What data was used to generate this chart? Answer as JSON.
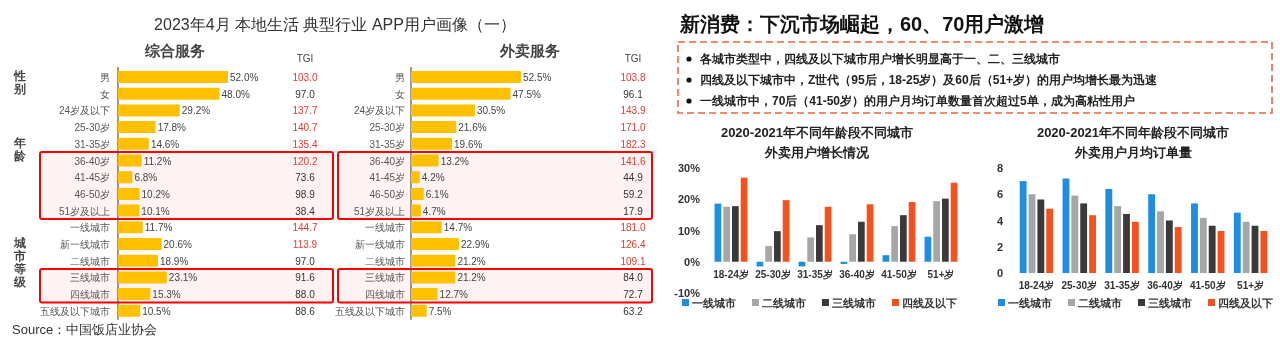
{
  "chart_data": [
    {
      "type": "bar",
      "orientation": "horizontal",
      "title": "2023年4月 本地生活 典型行业 APP用户画像（一）",
      "subtitle": "综合服务",
      "categories": [
        "男",
        "女",
        "24岁及以下",
        "25-30岁",
        "31-35岁",
        "36-40岁",
        "41-45岁",
        "46-50岁",
        "51岁及以上",
        "一线城市",
        "新一线城市",
        "二线城市",
        "三线城市",
        "四线城市",
        "五线及以下城市"
      ],
      "series": [
        {
          "color": "#ffc000",
          "values": [
            52.0,
            48.0,
            29.2,
            17.8,
            14.6,
            11.2,
            6.8,
            10.2,
            10.1,
            11.7,
            20.6,
            18.9,
            23.1,
            15.3,
            10.5
          ],
          "value_labels": [
            "52.0%",
            "48.0%",
            "29.2%",
            "17.8%",
            "14.6%",
            "11.2%",
            "6.8%",
            "10.2%",
            "10.1%",
            "11.7%",
            "20.6%",
            "18.9%",
            "23.1%",
            "15.3%",
            "10.5%"
          ]
        }
      ],
      "bands": [
        {
          "axis": "y",
          "from": "36-40岁",
          "to": "51岁及以上",
          "color": "#ff0000"
        },
        {
          "axis": "y",
          "from": "三线城市",
          "to": "四线城市",
          "color": "#ff0000"
        }
      ],
      "annotations": [
        "性别",
        "年龄",
        "城市等级",
        "TGI",
        "103.0",
        "97.0",
        "137.7",
        "140.7",
        "135.4",
        "120.2",
        "73.6",
        "98.9",
        "38.4",
        "144.7",
        "113.9",
        "97.0",
        "91.6",
        "88.0",
        "88.6"
      ]
    },
    {
      "type": "bar",
      "orientation": "horizontal",
      "subtitle": "外卖服务",
      "categories": [
        "男",
        "女",
        "24岁及以下",
        "25-30岁",
        "31-35岁",
        "36-40岁",
        "41-45岁",
        "46-50岁",
        "51岁及以上",
        "一线城市",
        "新一线城市",
        "二线城市",
        "三线城市",
        "四线城市",
        "五线及以下城市"
      ],
      "series": [
        {
          "color": "#ffc000",
          "values": [
            52.5,
            47.5,
            30.5,
            21.6,
            19.6,
            13.2,
            4.2,
            6.1,
            4.7,
            14.7,
            22.9,
            21.2,
            21.2,
            12.7,
            7.5
          ],
          "value_labels": [
            "52.5%",
            "47.5%",
            "30.5%",
            "21.6%",
            "19.6%",
            "13.2%",
            "4.2%",
            "6.1%",
            "4.7%",
            "14.7%",
            "22.9%",
            "21.2%",
            "21.2%",
            "12.7%",
            "7.5%"
          ]
        }
      ],
      "bands": [
        {
          "axis": "y",
          "from": "36-40岁",
          "to": "51岁及以上",
          "color": "#ff0000"
        },
        {
          "axis": "y",
          "from": "三线城市",
          "to": "四线城市",
          "color": "#ff0000"
        }
      ],
      "annotations": [
        "TGI",
        "103.8",
        "96.1",
        "143.9",
        "171.0",
        "182.3",
        "141.6",
        "44.9",
        "59.2",
        "17.9",
        "181.0",
        "126.4",
        "109.1",
        "84.0",
        "72.7",
        "63.2",
        "Source：中国饭店业协会"
      ]
    },
    {
      "type": "other",
      "title": "新消费：下沉市场崛起，60、70用户激增",
      "annotations": [
        "各城市类型中，四线及以下城市用户增长明显高于一、二、三线城市",
        "四线及以下城市中，Z世代（95后，18-25岁）及60后（51+岁）的用户均增长最为迅速",
        "一线城市中，70后（41-50岁）的用户月均订单数量首次超过5单，成为高粘性用户"
      ]
    },
    {
      "type": "bar",
      "title": "2020-2021年不同年龄段不同城市",
      "subtitle": "外卖用户增长情况",
      "categories": [
        "18-24岁",
        "25-30岁",
        "31-35岁",
        "36-40岁",
        "41-50岁",
        "51+岁"
      ],
      "ylim": [
        -10,
        30
      ],
      "yticks": [
        {
          "value": -10,
          "label": "-10%"
        },
        {
          "value": 0,
          "label": "0%"
        },
        {
          "value": 10,
          "label": "10%"
        },
        {
          "value": 20,
          "label": "20%"
        },
        {
          "value": 30,
          "label": "30%"
        }
      ],
      "legend": "bottom",
      "series": [
        {
          "name": "一线城市",
          "color": "#1f8ee0",
          "values": [
            18.6,
            -1.5,
            -1.5,
            -0.7,
            2.1,
            8.0
          ]
        },
        {
          "name": "二线城市",
          "color": "#a6a6a6",
          "values": [
            17.6,
            5.0,
            7.8,
            8.8,
            11.4,
            19.4
          ]
        },
        {
          "name": "三线城市",
          "color": "#3a3a3a",
          "values": [
            17.8,
            9.8,
            11.7,
            12.8,
            14.9,
            20.2
          ]
        },
        {
          "name": "四线及以下",
          "color": "#f4511e",
          "values": [
            26.9,
            19.7,
            17.6,
            18.4,
            19.1,
            25.3
          ]
        }
      ]
    },
    {
      "type": "bar",
      "title": "2020-2021年不同年龄段不同城市",
      "subtitle": "外卖用户月均订单量",
      "categories": [
        "18-24岁",
        "25-30岁",
        "31-35岁",
        "36-40岁",
        "41-50岁",
        "51+岁"
      ],
      "ylim": [
        0,
        8
      ],
      "yticks": [
        0,
        2,
        4,
        6,
        8
      ],
      "legend": "bottom",
      "series": [
        {
          "name": "一线城市",
          "color": "#1f8ee0",
          "values": [
            7.0,
            7.2,
            6.4,
            6.0,
            5.3,
            4.6
          ]
        },
        {
          "name": "二线城市",
          "color": "#a6a6a6",
          "values": [
            6.0,
            5.9,
            5.1,
            4.7,
            4.2,
            3.9
          ]
        },
        {
          "name": "三线城市",
          "color": "#3a3a3a",
          "values": [
            5.6,
            5.3,
            4.5,
            4.0,
            3.6,
            3.6
          ]
        },
        {
          "name": "四线及以下",
          "color": "#f4511e",
          "values": [
            4.9,
            4.4,
            3.9,
            3.5,
            3.2,
            3.2
          ]
        }
      ]
    }
  ]
}
